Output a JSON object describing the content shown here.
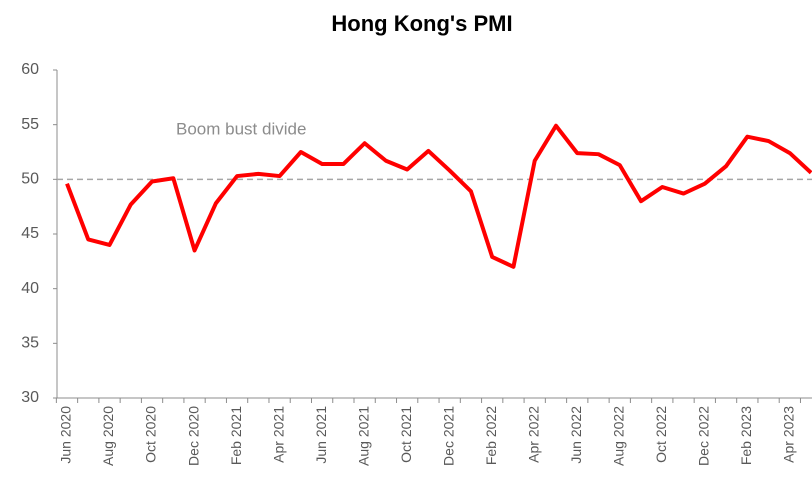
{
  "chart_data": {
    "type": "line",
    "title": "Hong Kong's PMI",
    "categories": [
      "Jun 2020",
      null,
      "Aug 2020",
      null,
      "Oct 2020",
      null,
      "Dec 2020",
      null,
      "Feb 2021",
      null,
      "Apr 2021",
      null,
      "Jun 2021",
      null,
      "Aug 2021",
      null,
      "Oct 2021",
      null,
      "Dec 2021",
      null,
      "Feb 2022",
      null,
      "Apr 2022",
      null,
      "Jun 2022",
      null,
      "Aug 2022",
      null,
      "Oct 2022",
      null,
      "Dec 2022",
      null,
      "Feb 2023",
      null,
      "Apr 2023",
      null
    ],
    "values": [
      49.6,
      44.5,
      44.0,
      47.7,
      49.8,
      50.1,
      43.5,
      47.8,
      50.3,
      50.5,
      50.3,
      52.5,
      51.4,
      51.4,
      53.3,
      51.7,
      50.9,
      52.6,
      50.8,
      48.9,
      42.9,
      42.0,
      51.7,
      54.9,
      52.4,
      52.3,
      51.3,
      48.0,
      49.3,
      48.7,
      49.6,
      51.2,
      53.9,
      53.5,
      52.4,
      50.6
    ],
    "color": "#ff0000",
    "reference_line": {
      "value": 50,
      "label": "Boom bust divide"
    },
    "ylim": [
      30,
      60
    ],
    "yticks": [
      30,
      35,
      40,
      45,
      50,
      55,
      60
    ],
    "grid": false
  }
}
